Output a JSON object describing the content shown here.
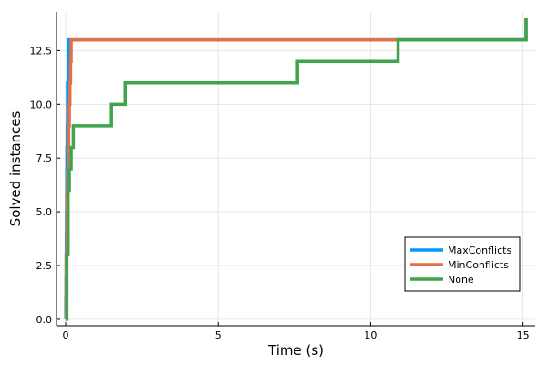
{
  "chart_data": {
    "type": "line",
    "title": "",
    "xlabel": "Time (s)",
    "ylabel": "Solved instances",
    "xlim": [
      -0.3,
      15.4
    ],
    "ylim": [
      -0.3,
      14.3
    ],
    "xticks": [
      0,
      5,
      10,
      15
    ],
    "xtick_labels": [
      "0",
      "5",
      "10",
      "15"
    ],
    "yticks": [
      0,
      2.5,
      5,
      7.5,
      10,
      12.5
    ],
    "ytick_labels": [
      "0.0",
      "2.5",
      "5.0",
      "7.5",
      "10.0",
      "12.5"
    ],
    "grid": true,
    "legend_position": "bottom-right",
    "series": [
      {
        "name": "MaxConflicts",
        "color": "#009AFA",
        "x": [
          0,
          0.005,
          0.01,
          0.015,
          0.02,
          0.025,
          0.03,
          0.035,
          0.04,
          0.05,
          0.06,
          0.08,
          15.1
        ],
        "y": [
          0,
          1,
          2,
          3,
          4,
          5,
          6,
          7,
          8,
          9,
          11,
          13,
          14
        ]
      },
      {
        "name": "MinConflicts",
        "color": "#E36F47",
        "x": [
          0,
          0.02,
          0.04,
          0.06,
          0.08,
          0.1,
          0.12,
          0.14,
          0.16,
          0.18,
          15.1
        ],
        "y": [
          0,
          3,
          6,
          7,
          8,
          9,
          10,
          11,
          12,
          13,
          14
        ]
      },
      {
        "name": "None",
        "color": "#3EA44E",
        "x": [
          0,
          0.04,
          0.08,
          0.12,
          0.18,
          0.25,
          1.5,
          1.95,
          7.6,
          10.9,
          15.1
        ],
        "y": [
          0,
          3,
          6,
          7,
          8,
          9,
          10,
          11,
          12,
          13,
          14
        ]
      }
    ]
  }
}
